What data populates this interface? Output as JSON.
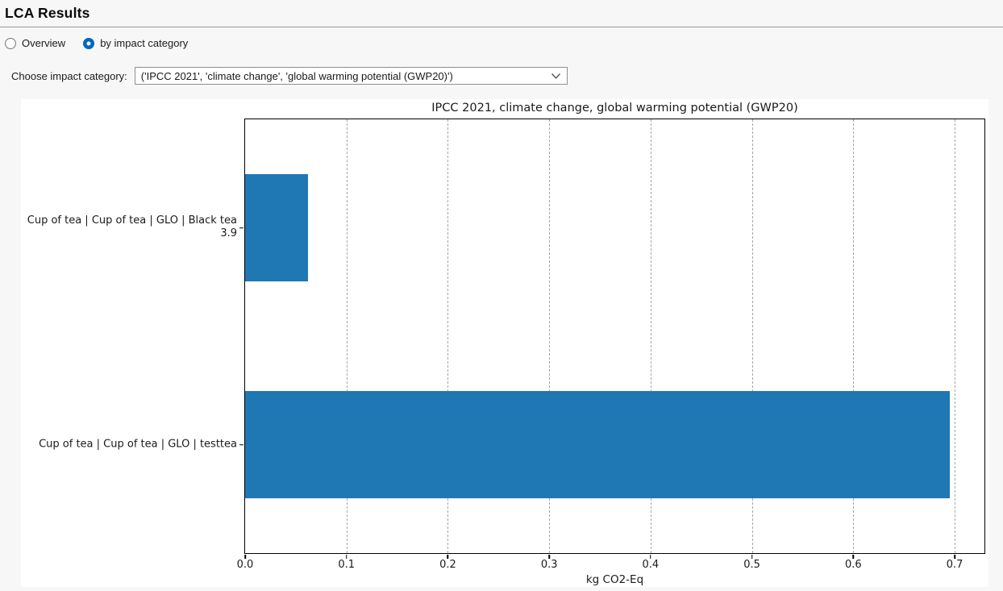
{
  "page": {
    "title": "LCA Results"
  },
  "view_toggle": {
    "options": [
      {
        "label": "Overview",
        "selected": false
      },
      {
        "label": "by impact category",
        "selected": true
      }
    ]
  },
  "category_picker": {
    "label": "Choose impact category:",
    "selected": "('IPCC 2021', 'climate change', 'global warming potential (GWP20)')"
  },
  "colors": {
    "accent_radio": "#0067c0",
    "bar": "#1f77b4",
    "grid": "#a6a6a6",
    "page_background": "#f7f7f7"
  },
  "chart_data": {
    "type": "bar",
    "orientation": "horizontal",
    "title": "IPCC 2021, climate change, global warming potential (GWP20)",
    "categories": [
      "Cup of tea | Cup of tea | GLO | Black tea 3.9",
      "Cup of tea | Cup of tea | GLO | testtea"
    ],
    "values": [
      0.062,
      0.695
    ],
    "xlabel": "kg CO2-Eq",
    "ylabel": "",
    "xlim": [
      0,
      0.7294
    ],
    "xticks": [
      0.0,
      0.1,
      0.2,
      0.3,
      0.4,
      0.5,
      0.6,
      0.7
    ],
    "grid": "vertical-dashed",
    "legend": "none",
    "bar_color": "#1f77b4",
    "bar_height_frac": 0.246
  }
}
